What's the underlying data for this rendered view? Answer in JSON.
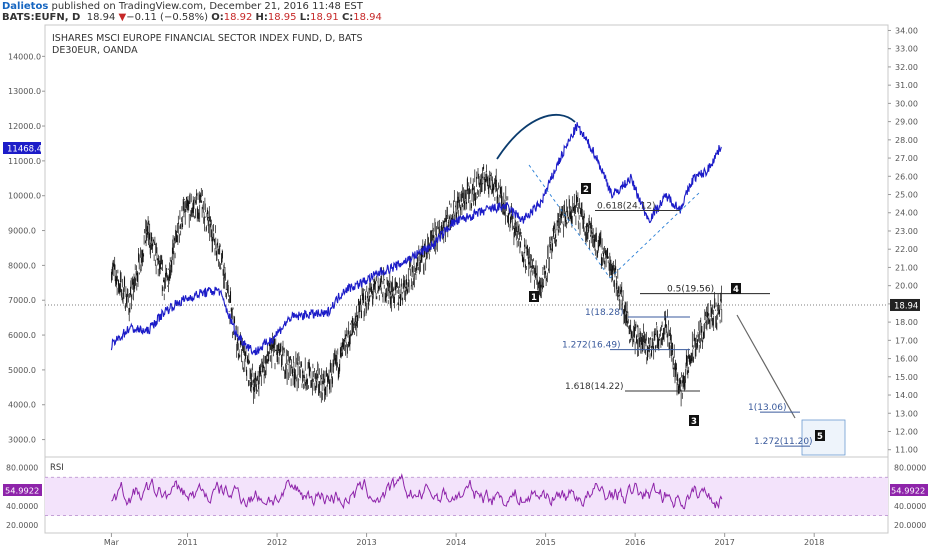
{
  "header": {
    "publisher": "Dalietos",
    "published_text": "published on TradingView.com, December 21, 2016 11:48 EST",
    "symbol": "BATS:EUFN, D",
    "last": "18.94",
    "change_arrow": "▼",
    "change": "−0.11 (−0.58%)",
    "o_label": "O:",
    "o_val": "18.92",
    "h_label": "H:",
    "h_val": "18.95",
    "l_label": "L:",
    "l_val": "18.91",
    "c_label": "C:",
    "c_val": "18.94"
  },
  "main_pane": {
    "title": "ISHARES MSCI EUROPE FINANCIAL SECTOR INDEX FUND, D, BATS",
    "subtitle": "DE30EUR, OANDA"
  },
  "chart_data": {
    "type": "line",
    "x": [
      "Mar",
      "2011",
      "2012",
      "2013",
      "2014",
      "2015",
      "2016",
      "2017",
      "2018"
    ],
    "left_axis": {
      "ticks": [
        "14000.0",
        "13000.0",
        "12000.0",
        "11000.0",
        "10000.0",
        "9000.0",
        "8000.0",
        "7000.0",
        "6000.0",
        "5000.0",
        "4000.0",
        "3000.0"
      ],
      "last_value_badge": "11468.4",
      "ylim": [
        2500,
        14900
      ]
    },
    "right_axis": {
      "ticks": [
        "34.00",
        "33.00",
        "32.00",
        "31.00",
        "30.00",
        "29.00",
        "28.00",
        "27.00",
        "26.00",
        "25.00",
        "24.00",
        "23.00",
        "22.00",
        "21.00",
        "20.00",
        "19.00",
        "18.00",
        "17.00",
        "16.00",
        "15.00",
        "14.00",
        "13.00",
        "12.00",
        "11.00"
      ],
      "last_value_badge": "18.94",
      "ylim": [
        10.6,
        34.3
      ]
    },
    "series": [
      {
        "name": "EUFN",
        "axis": "right",
        "style": "bars",
        "color": "#000000",
        "x": [
          2010.15,
          2010.35,
          2010.55,
          2010.75,
          2010.95,
          2011.15,
          2011.35,
          2011.55,
          2011.75,
          2011.95,
          2012.15,
          2012.35,
          2012.55,
          2012.75,
          2012.95,
          2013.15,
          2013.35,
          2013.55,
          2013.75,
          2013.95,
          2014.15,
          2014.35,
          2014.55,
          2014.75,
          2014.95,
          2015.15,
          2015.35,
          2015.55,
          2015.75,
          2015.95,
          2016.15,
          2016.35,
          2016.5,
          2016.65,
          2016.8,
          2016.97
        ],
        "values": [
          21.0,
          19.0,
          23.0,
          20.0,
          24.0,
          24.5,
          22.0,
          17.0,
          14.5,
          16.5,
          15.5,
          15.0,
          14.5,
          16.5,
          19.0,
          20.0,
          19.5,
          21.0,
          22.5,
          24.0,
          25.0,
          26.0,
          24.5,
          22.0,
          20.0,
          23.5,
          24.2,
          22.5,
          21.0,
          17.5,
          16.5,
          18.0,
          14.22,
          16.5,
          18.0,
          18.94
        ]
      },
      {
        "name": "DE30EUR",
        "axis": "left",
        "style": "line",
        "color": "#1c1cc8",
        "x": [
          2010.15,
          2010.35,
          2010.55,
          2010.75,
          2010.95,
          2011.15,
          2011.35,
          2011.55,
          2011.75,
          2011.95,
          2012.15,
          2012.35,
          2012.55,
          2012.75,
          2012.95,
          2013.15,
          2013.35,
          2013.55,
          2013.75,
          2013.95,
          2014.15,
          2014.35,
          2014.55,
          2014.75,
          2014.95,
          2015.15,
          2015.35,
          2015.55,
          2015.75,
          2015.95,
          2016.15,
          2016.35,
          2016.5,
          2016.65,
          2016.8,
          2016.97
        ],
        "values": [
          5700,
          6200,
          6100,
          6700,
          7000,
          7200,
          7300,
          6000,
          5500,
          5900,
          6500,
          6600,
          6600,
          7300,
          7500,
          7800,
          8000,
          8300,
          8600,
          9200,
          9400,
          9600,
          9700,
          9300,
          9800,
          11000,
          12000,
          11200,
          10000,
          10500,
          9300,
          10000,
          9600,
          10500,
          10700,
          11468
        ]
      }
    ],
    "annotations": {
      "wave_labels": [
        "1",
        "2",
        "3",
        "4",
        "5"
      ],
      "fib_levels": [
        {
          "label": "0.618(24.12)",
          "value": 24.12
        },
        {
          "label": "0.5(19.56)",
          "value": 19.56
        },
        {
          "label": "1(18.28)",
          "value": 18.28
        },
        {
          "label": "1.272(16.49)",
          "value": 16.49
        },
        {
          "label": "1.618(14.22)",
          "value": 14.22
        },
        {
          "label": "1(13.06)",
          "value": 13.06
        },
        {
          "label": "1.272(11.20)",
          "value": 11.2
        }
      ],
      "current_price_line": 18.94
    }
  },
  "rsi_pane": {
    "title": "RSI",
    "ticks": [
      "80.0000",
      "60.0000",
      "40.0000",
      "20.0000"
    ],
    "right_ticks": [
      "80.0000",
      "60.0000",
      "40.0000",
      "20.0000"
    ],
    "last_value": "54.9922",
    "last_value_right": "54.9922",
    "upper_band": 70,
    "lower_band": 30,
    "line_color": "#8e24aa",
    "band_fill": "#f3e3fb"
  }
}
